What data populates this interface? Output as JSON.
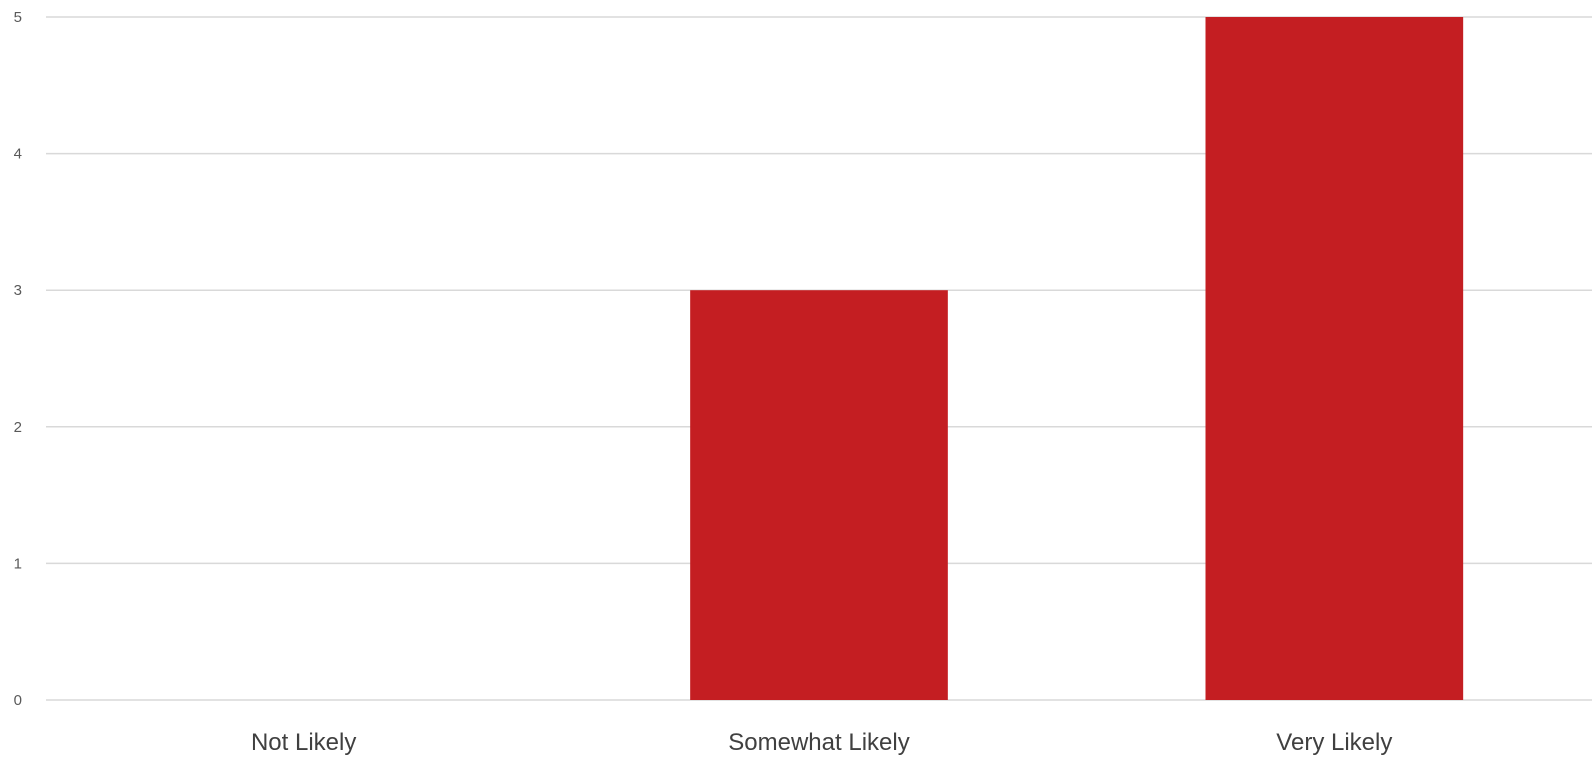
{
  "chart_data": {
    "type": "bar",
    "categories": [
      "Not Likely",
      "Somewhat Likely",
      "Very Likely"
    ],
    "values": [
      0,
      3,
      5
    ],
    "ylim": [
      0,
      5
    ],
    "yticks": [
      0,
      1,
      2,
      3,
      4,
      5
    ],
    "grid": true,
    "legend": "none",
    "bar_color": "#c41e22",
    "title": "",
    "xlabel": "",
    "ylabel": ""
  }
}
